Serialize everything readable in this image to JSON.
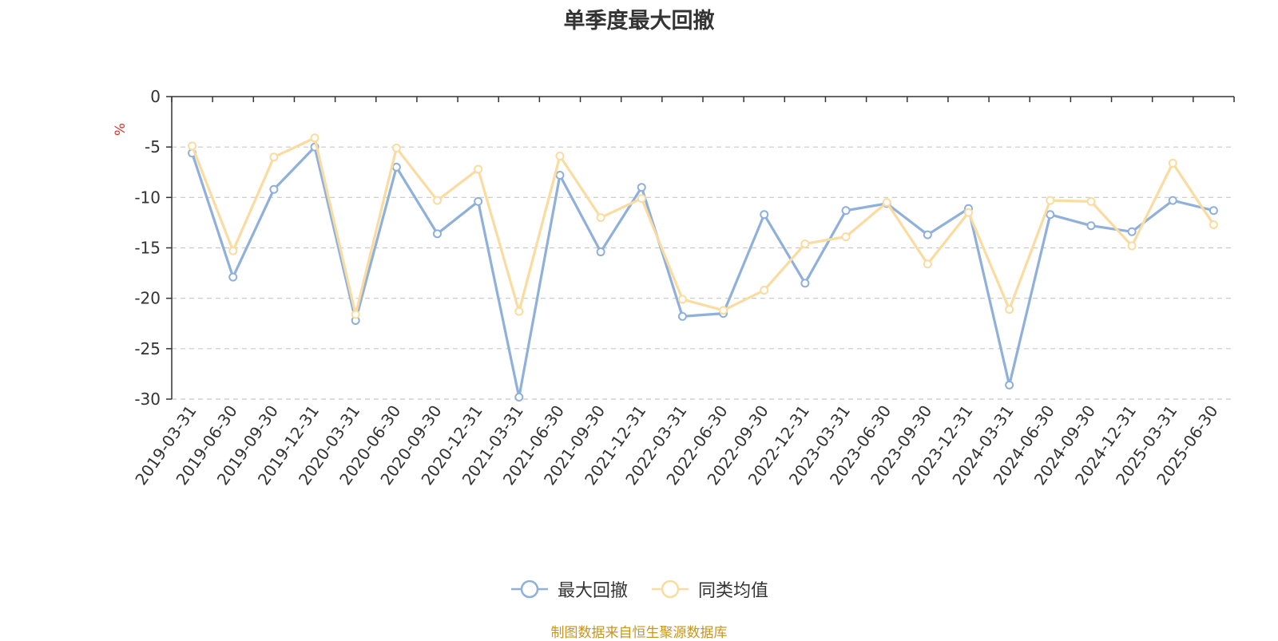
{
  "chart_data": {
    "type": "line",
    "title": "单季度最大回撤",
    "ylabel": "%",
    "xlabel": "",
    "ylim": [
      -30,
      0
    ],
    "yticks": [
      0,
      -5,
      -10,
      -15,
      -20,
      -25,
      -30
    ],
    "grid": true,
    "legend_position": "bottom",
    "categories": [
      "2019-03-31",
      "2019-06-30",
      "2019-09-30",
      "2019-12-31",
      "2020-03-31",
      "2020-06-30",
      "2020-09-30",
      "2020-12-31",
      "2021-03-31",
      "2021-06-30",
      "2021-09-30",
      "2021-12-31",
      "2022-03-31",
      "2022-06-30",
      "2022-09-30",
      "2022-12-31",
      "2023-03-31",
      "2023-06-30",
      "2023-09-30",
      "2023-12-31",
      "2024-03-31",
      "2024-06-30",
      "2024-09-30",
      "2024-12-31",
      "2025-03-31",
      "2025-06-30"
    ],
    "series": [
      {
        "name": "最大回撤",
        "color": "#8eb0db",
        "values": [
          -5.6,
          -17.9,
          -9.2,
          -5.0,
          -22.2,
          -7.0,
          -13.6,
          -10.4,
          -29.8,
          -7.8,
          -15.4,
          -9.0,
          -21.8,
          -21.5,
          -11.7,
          -18.5,
          -11.3,
          -10.6,
          -13.7,
          -11.1,
          -28.6,
          -11.7,
          -12.8,
          -13.4,
          -10.3,
          -11.3
        ]
      },
      {
        "name": "同类均值",
        "color": "#fadba0",
        "values": [
          -4.9,
          -15.3,
          -6.0,
          -4.1,
          -21.6,
          -5.1,
          -10.3,
          -7.2,
          -21.3,
          -5.9,
          -12.0,
          -10.1,
          -20.1,
          -21.2,
          -19.2,
          -14.6,
          -13.9,
          -10.5,
          -16.6,
          -11.5,
          -21.1,
          -10.3,
          -10.4,
          -14.8,
          -6.6,
          -12.7
        ]
      }
    ]
  },
  "source_text": "制图数据来自恒生聚源数据库"
}
